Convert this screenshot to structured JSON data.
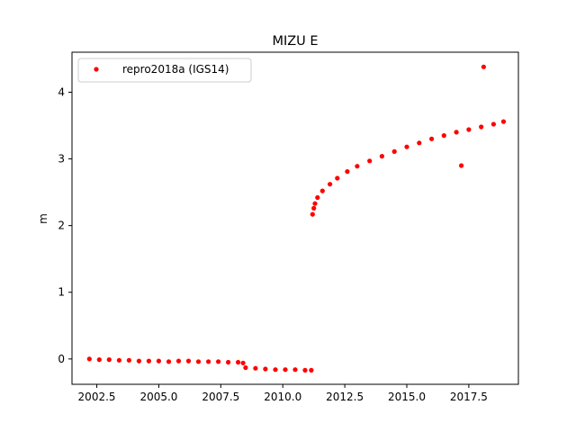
{
  "chart_data": {
    "type": "scatter",
    "title": "MIZU E",
    "xlabel": "",
    "ylabel": "m",
    "xlim": [
      2001.5,
      2019.5
    ],
    "ylim": [
      -0.38,
      4.6
    ],
    "xticks": [
      2002.5,
      2005.0,
      2007.5,
      2010.0,
      2012.5,
      2015.0,
      2017.5
    ],
    "xtick_labels": [
      "2002.5",
      "2005.0",
      "2007.5",
      "2010.0",
      "2012.5",
      "2015.0",
      "2017.5"
    ],
    "yticks": [
      0,
      1,
      2,
      3,
      4
    ],
    "ytick_labels": [
      "0",
      "1",
      "2",
      "3",
      "4"
    ],
    "grid": false,
    "legend_position": "top-left",
    "color": "#ff0000",
    "series": [
      {
        "name": "repro2018a (IGS14)",
        "points": [
          [
            2002.2,
            0.0
          ],
          [
            2002.6,
            -0.01
          ],
          [
            2003.0,
            -0.01
          ],
          [
            2003.4,
            -0.02
          ],
          [
            2003.8,
            -0.02
          ],
          [
            2004.2,
            -0.03
          ],
          [
            2004.6,
            -0.03
          ],
          [
            2005.0,
            -0.03
          ],
          [
            2005.4,
            -0.04
          ],
          [
            2005.8,
            -0.03
          ],
          [
            2006.2,
            -0.03
          ],
          [
            2006.6,
            -0.04
          ],
          [
            2007.0,
            -0.04
          ],
          [
            2007.4,
            -0.04
          ],
          [
            2007.8,
            -0.05
          ],
          [
            2008.2,
            -0.05
          ],
          [
            2008.4,
            -0.06
          ],
          [
            2008.5,
            -0.13
          ],
          [
            2008.9,
            -0.14
          ],
          [
            2009.3,
            -0.15
          ],
          [
            2009.7,
            -0.16
          ],
          [
            2010.1,
            -0.16
          ],
          [
            2010.5,
            -0.16
          ],
          [
            2010.9,
            -0.17
          ],
          [
            2011.15,
            -0.17
          ],
          [
            2011.2,
            2.17
          ],
          [
            2011.25,
            2.26
          ],
          [
            2011.3,
            2.33
          ],
          [
            2011.4,
            2.42
          ],
          [
            2011.6,
            2.52
          ],
          [
            2011.9,
            2.62
          ],
          [
            2012.2,
            2.71
          ],
          [
            2012.6,
            2.81
          ],
          [
            2013.0,
            2.89
          ],
          [
            2013.5,
            2.97
          ],
          [
            2014.0,
            3.04
          ],
          [
            2014.5,
            3.11
          ],
          [
            2015.0,
            3.18
          ],
          [
            2015.5,
            3.24
          ],
          [
            2016.0,
            3.3
          ],
          [
            2016.5,
            3.35
          ],
          [
            2017.0,
            3.4
          ],
          [
            2017.5,
            3.44
          ],
          [
            2018.0,
            3.48
          ],
          [
            2018.5,
            3.52
          ],
          [
            2018.9,
            3.56
          ],
          [
            2017.2,
            2.9
          ],
          [
            2018.1,
            4.38
          ]
        ]
      }
    ]
  }
}
